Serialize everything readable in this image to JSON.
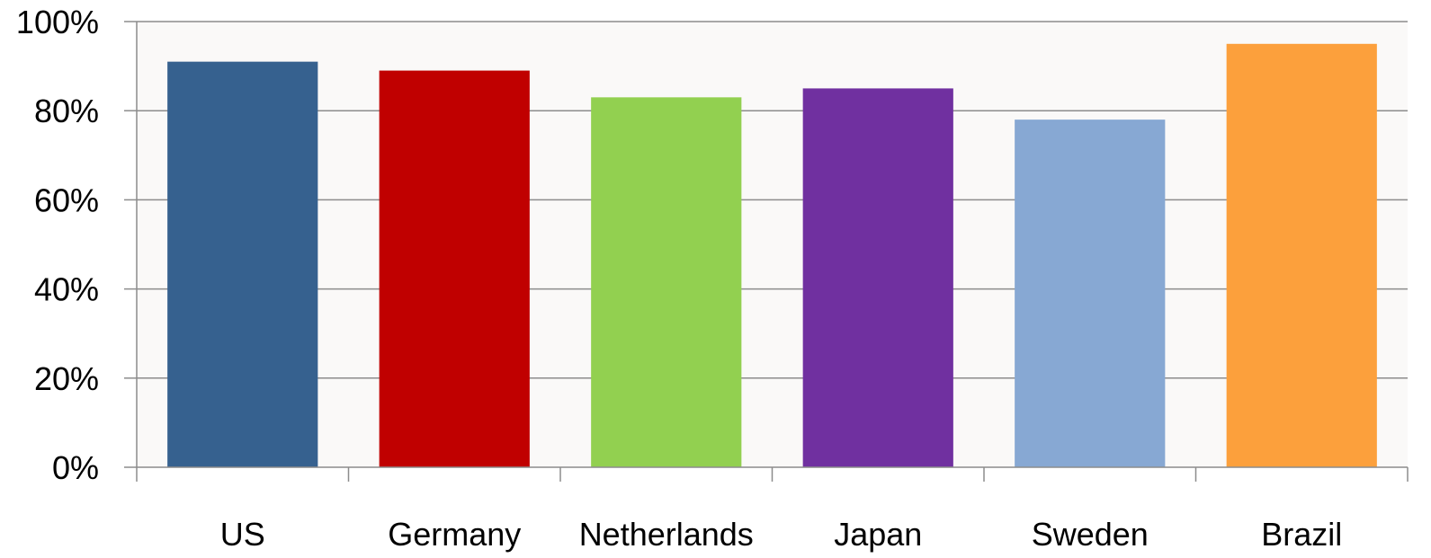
{
  "chart_data": {
    "type": "bar",
    "title": "",
    "xlabel": "",
    "ylabel": "",
    "categories": [
      "US",
      "Germany",
      "Netherlands",
      "Japan",
      "Sweden",
      "Brazil"
    ],
    "values": [
      91,
      89,
      83,
      85,
      78,
      95
    ],
    "ylim": [
      0,
      100
    ],
    "yticks": [
      0,
      20,
      40,
      60,
      80,
      100
    ],
    "ytick_labels": [
      "0%",
      "20%",
      "40%",
      "60%",
      "80%",
      "100%"
    ],
    "grid": true,
    "legend": "none",
    "plot_background": "#faf9f8",
    "gridline_color": "#8c8c8c",
    "colors": [
      "#36618f",
      "#c00000",
      "#92d050",
      "#7030a0",
      "#87a8d3",
      "#fca03c"
    ]
  }
}
